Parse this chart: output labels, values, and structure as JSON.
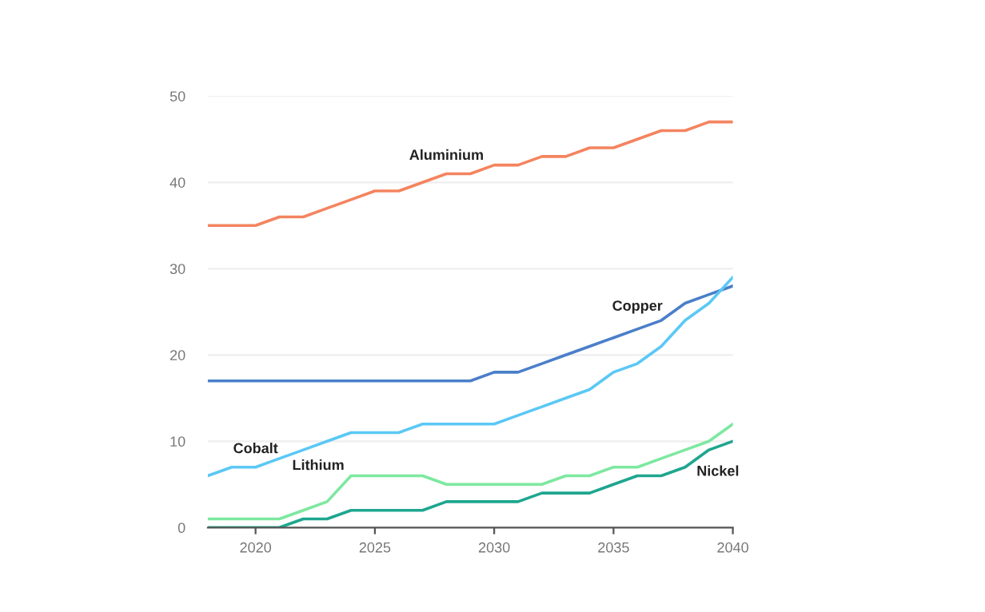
{
  "chart_data": {
    "type": "line",
    "x": [
      2018,
      2019,
      2020,
      2021,
      2022,
      2023,
      2024,
      2025,
      2026,
      2027,
      2028,
      2029,
      2030,
      2031,
      2032,
      2033,
      2034,
      2035,
      2036,
      2037,
      2038,
      2039,
      2040
    ],
    "series": [
      {
        "name": "Aluminium",
        "color": "#f4845f",
        "values": [
          35,
          35,
          35,
          36,
          36,
          37,
          38,
          39,
          39,
          40,
          41,
          41,
          42,
          42,
          43,
          43,
          44,
          44,
          45,
          46,
          46,
          47,
          47
        ]
      },
      {
        "name": "Copper",
        "color": "#4a7fc9",
        "values": [
          17,
          17,
          17,
          17,
          17,
          17,
          17,
          17,
          17,
          17,
          17,
          17,
          18,
          18,
          19,
          20,
          21,
          22,
          23,
          24,
          26,
          27,
          28
        ]
      },
      {
        "name": "Cobalt",
        "color": "#5bc8f5",
        "values": [
          6,
          7,
          7,
          8,
          9,
          10,
          11,
          11,
          11,
          12,
          12,
          12,
          12,
          13,
          14,
          15,
          16,
          18,
          19,
          21,
          24,
          26,
          29
        ]
      },
      {
        "name": "Lithium",
        "color": "#7de8a0",
        "values": [
          1,
          1,
          1,
          1,
          2,
          3,
          6,
          6,
          6,
          6,
          5,
          5,
          5,
          5,
          5,
          6,
          6,
          7,
          7,
          8,
          9,
          10,
          12
        ]
      },
      {
        "name": "Nickel",
        "color": "#1fa68f",
        "values": [
          0,
          0,
          0,
          0,
          1,
          1,
          2,
          2,
          2,
          2,
          3,
          3,
          3,
          3,
          4,
          4,
          4,
          5,
          6,
          6,
          7,
          9,
          10
        ]
      }
    ],
    "xlim": [
      2018,
      2040
    ],
    "ylim": [
      0,
      50
    ],
    "xticks": [
      2020,
      2025,
      2030,
      2035,
      2040
    ],
    "yticks": [
      0,
      10,
      20,
      30,
      40,
      50
    ],
    "grid": "y",
    "legend": false,
    "marker": "none",
    "line_style": "solid"
  }
}
